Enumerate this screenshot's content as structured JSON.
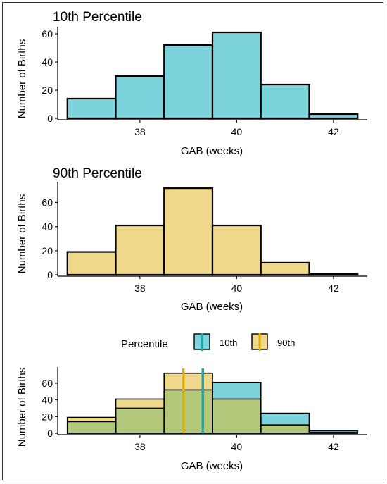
{
  "colors": {
    "tenth": "#7dd3dc",
    "ninetieth": "#f0d98a",
    "overlap": "#b5c97c",
    "tenth_line": "#1aa8b0",
    "ninetieth_line": "#e0b000",
    "outline": "#000000"
  },
  "chart_data": [
    {
      "type": "bar",
      "title": "10th Percentile",
      "xlabel": "GAB (weeks)",
      "ylabel": "Number of Births",
      "xlim": [
        36.3,
        42.7
      ],
      "ylim": [
        0,
        63
      ],
      "xticks": [
        38,
        40,
        42
      ],
      "yticks": [
        0,
        20,
        40,
        60
      ],
      "bins": [
        [
          36.5,
          37.5
        ],
        [
          37.5,
          38.5
        ],
        [
          38.5,
          39.5
        ],
        [
          39.5,
          40.5
        ],
        [
          40.5,
          41.5
        ],
        [
          41.5,
          42.5
        ]
      ],
      "series": [
        {
          "values": [
            14,
            30,
            52,
            61,
            24,
            3
          ],
          "colorKey": "tenth"
        }
      ],
      "grid": false
    },
    {
      "type": "bar",
      "title": "90th Percentile",
      "xlabel": "GAB (weeks)",
      "ylabel": "Number of Births",
      "xlim": [
        36.3,
        42.7
      ],
      "ylim": [
        0,
        75
      ],
      "xticks": [
        38,
        40,
        42
      ],
      "yticks": [
        0,
        20,
        40,
        60
      ],
      "bins": [
        [
          36.5,
          37.5
        ],
        [
          37.5,
          38.5
        ],
        [
          38.5,
          39.5
        ],
        [
          39.5,
          40.5
        ],
        [
          40.5,
          41.5
        ],
        [
          41.5,
          42.5
        ]
      ],
      "series": [
        {
          "values": [
            19,
            41,
            72,
            41,
            10,
            1
          ],
          "colorKey": "ninetieth"
        }
      ],
      "grid": false
    },
    {
      "type": "bar",
      "title": "",
      "xlabel": "GAB (weeks)",
      "ylabel": "Number of Births",
      "xlim": [
        36.3,
        42.7
      ],
      "ylim": [
        0,
        76
      ],
      "xticks": [
        38,
        40,
        42
      ],
      "yticks": [
        0,
        20,
        40,
        60
      ],
      "bins": [
        [
          36.5,
          37.5
        ],
        [
          37.5,
          38.5
        ],
        [
          38.5,
          39.5
        ],
        [
          39.5,
          40.5
        ],
        [
          40.5,
          41.5
        ],
        [
          41.5,
          42.5
        ]
      ],
      "series": [
        {
          "name": "10th",
          "values": [
            14,
            30,
            52,
            61,
            24,
            3
          ],
          "colorKey": "tenth"
        },
        {
          "name": "90th",
          "values": [
            19,
            41,
            72,
            41,
            10,
            1
          ],
          "colorKey": "ninetieth"
        }
      ],
      "vlines": [
        {
          "series": "10th",
          "x": 39.3
        },
        {
          "series": "90th",
          "x": 38.9
        }
      ],
      "legend": {
        "title": "Percentile",
        "placement": "top"
      },
      "grid": false
    }
  ]
}
